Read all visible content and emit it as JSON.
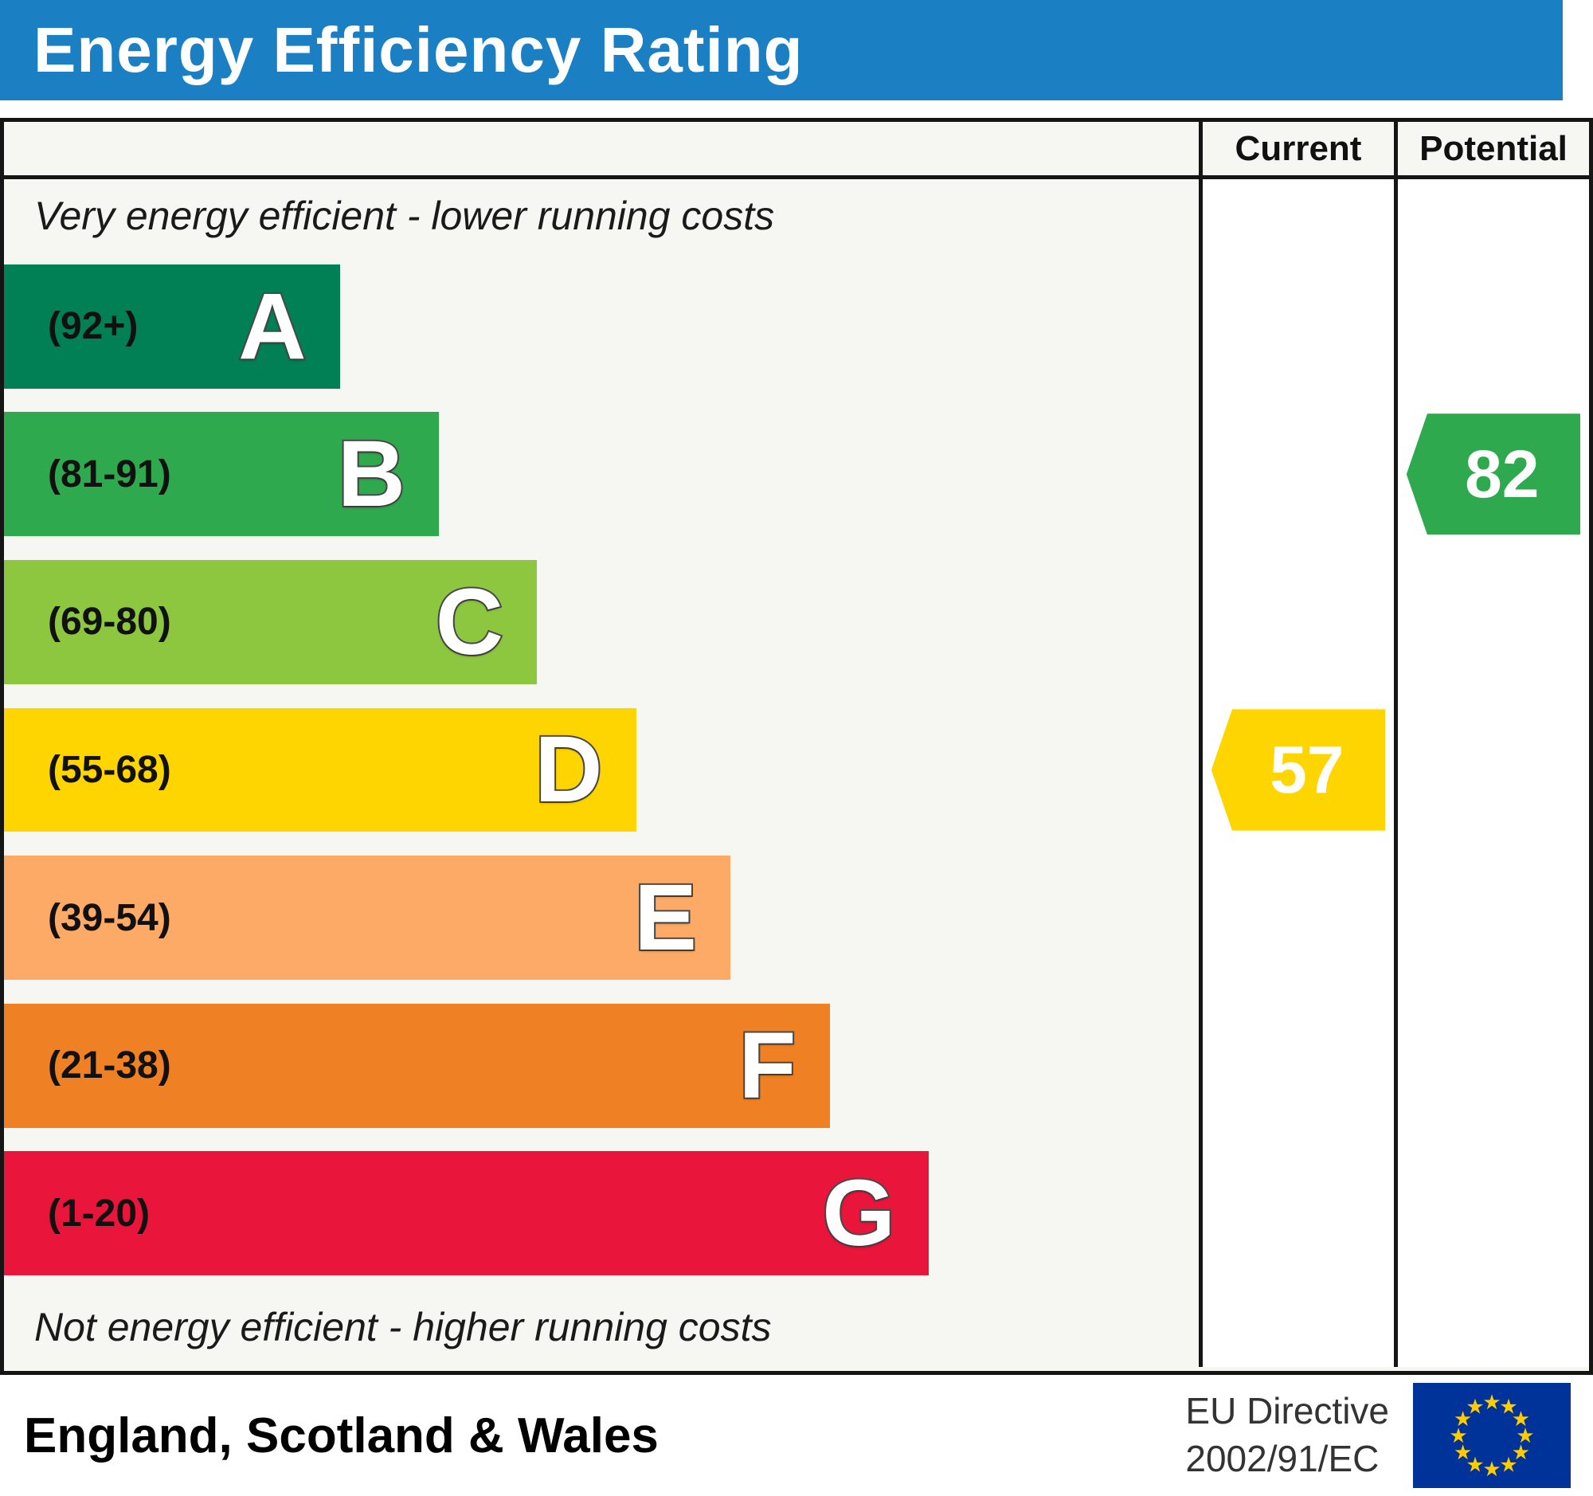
{
  "title": "Energy Efficiency Rating",
  "header": {
    "current": "Current",
    "potential": "Potential"
  },
  "captions": {
    "top": "Very energy efficient - lower running costs",
    "bottom": "Not energy efficient - higher running costs"
  },
  "footer": {
    "region": "England, Scotland & Wales",
    "directive": {
      "line1": "EU Directive",
      "line2": "2002/91/EC"
    },
    "eu_flag": {
      "background": "#003399",
      "star_color": "#FFCC00",
      "star_char": "★",
      "star_count": 12
    }
  },
  "colors": {
    "title_bar": "#1b7fc4",
    "table_border": "#151515",
    "body_bg": "#f6f6f2",
    "column_bg": "#ffffff"
  },
  "chart_data": {
    "type": "bar",
    "title": "Energy Efficiency Rating",
    "categories": [
      "A",
      "B",
      "C",
      "D",
      "E",
      "F",
      "G"
    ],
    "bands": [
      {
        "letter": "A",
        "range": "(92+)",
        "color": "#008054",
        "width_pct": "28.1%"
      },
      {
        "letter": "B",
        "range": "(81-91)",
        "color": "#2ea94e",
        "width_pct": "36.4%"
      },
      {
        "letter": "C",
        "range": "(69-80)",
        "color": "#8dc63f",
        "width_pct": "44.6%"
      },
      {
        "letter": "D",
        "range": "(55-68)",
        "color": "#ffd500",
        "width_pct": "52.9%"
      },
      {
        "letter": "E",
        "range": "(39-54)",
        "color": "#fcaa65",
        "width_pct": "60.8%"
      },
      {
        "letter": "F",
        "range": "(21-38)",
        "color": "#ef8023",
        "width_pct": "69.1%"
      },
      {
        "letter": "G",
        "range": "(1-20)",
        "color": "#e9153b",
        "width_pct": "77.4%"
      }
    ],
    "current": {
      "value": 57,
      "band": "D",
      "color": "#ffd500"
    },
    "potential": {
      "value": 82,
      "band": "B",
      "color": "#2ea94e"
    },
    "legend_position": "none",
    "grid": false
  }
}
